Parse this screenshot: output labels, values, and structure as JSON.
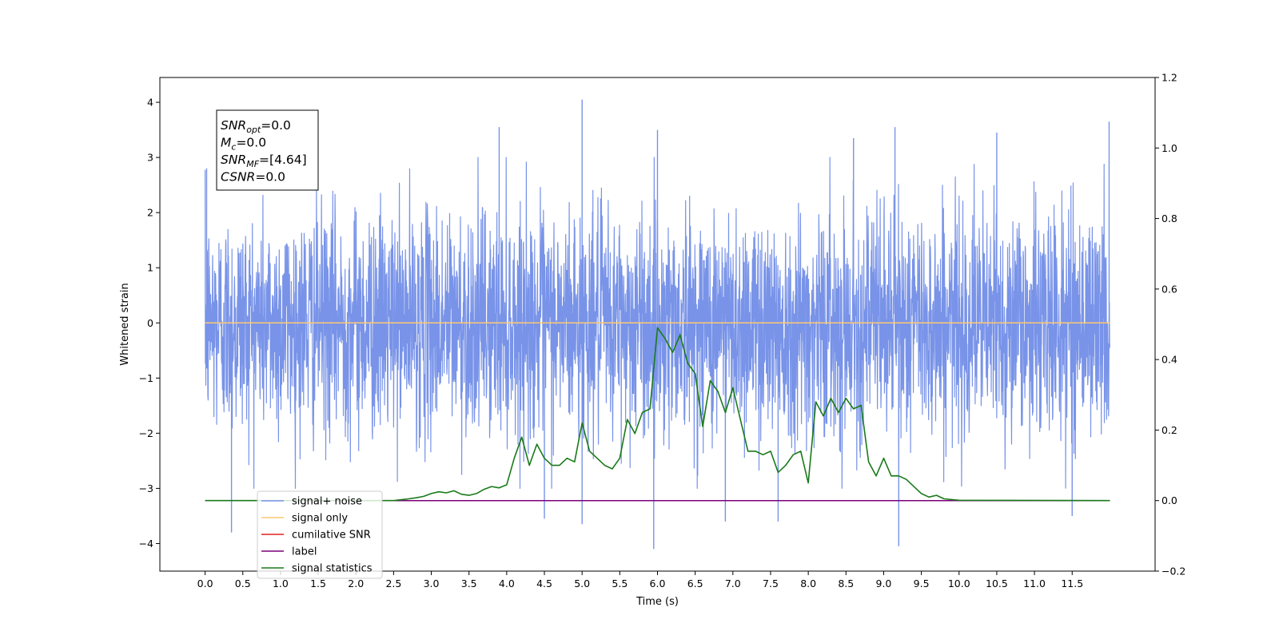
{
  "chart_data": {
    "type": "line",
    "xlabel": "Time (s)",
    "ylabel_left": "Whitened strain",
    "ylabel_right": "",
    "xlim": [
      -0.6,
      12.6
    ],
    "ylim_left": [
      -4.5,
      4.45
    ],
    "ylim_right": [
      -0.2,
      1.2
    ],
    "x_ticks": [
      0.0,
      0.5,
      1.0,
      1.5,
      2.0,
      2.5,
      3.0,
      3.5,
      4.0,
      4.5,
      5.0,
      5.5,
      6.0,
      6.5,
      7.0,
      7.5,
      8.0,
      8.5,
      9.0,
      9.5,
      10.0,
      10.5,
      11.0,
      11.5
    ],
    "x_tick_labels": [
      "0.0",
      "0.5",
      "1.0",
      "1.5",
      "2.0",
      "2.5",
      "3.0",
      "3.5",
      "4.0",
      "4.5",
      "5.0",
      "5.5",
      "6.0",
      "6.5",
      "7.0",
      "7.5",
      "8.0",
      "8.5",
      "9.0",
      "9.5",
      "10.0",
      "10.5",
      "11.0",
      "11.5"
    ],
    "y_left_ticks": [
      4,
      3,
      2,
      1,
      0,
      -1,
      -2,
      -3,
      -4
    ],
    "y_left_tick_labels": [
      "4",
      "3",
      "2",
      "1",
      "0",
      "−1",
      "−2",
      "−3",
      "−4"
    ],
    "y_right_ticks": [
      1.2,
      1.0,
      0.8,
      0.6,
      0.4,
      0.2,
      0.0,
      -0.2
    ],
    "y_right_tick_labels": [
      "1.2",
      "1.0",
      "0.8",
      "0.6",
      "0.4",
      "0.2",
      "0.0",
      "−0.2"
    ],
    "legend_placement": "lower-left",
    "legend": [
      {
        "label": "signal+ noise",
        "color": "#7893e8"
      },
      {
        "label": "signal only",
        "color": "#ffc870"
      },
      {
        "label": "cumilative SNR",
        "color": "#e02020"
      },
      {
        "label": "label",
        "color": "#7a007a"
      },
      {
        "label": "signal statistics",
        "color": "#1a7a1a"
      }
    ],
    "annotation": {
      "lines": [
        {
          "base": "SNR",
          "sub": "opt",
          "value": "=0.0"
        },
        {
          "base": "M",
          "sub": "c",
          "value": "=0.0"
        },
        {
          "base": "SNR",
          "sub": "MF",
          "value": "=[4.64]"
        },
        {
          "base": "CSNR",
          "sub": "",
          "value": "=0.0"
        }
      ]
    },
    "series": [
      {
        "name": "signal+ noise",
        "axis": "left",
        "color": "#7893e8",
        "x_range": [
          0.0,
          12.0
        ],
        "value_range": [
          -4.1,
          4.05
        ],
        "peaks": [
          {
            "x": 0.02,
            "y": 2.8
          },
          {
            "x": 0.35,
            "y": -3.8
          },
          {
            "x": 3.9,
            "y": 3.55
          },
          {
            "x": 4.5,
            "y": -3.55
          },
          {
            "x": 5.0,
            "y": 4.05
          },
          {
            "x": 5.0,
            "y": -3.65
          },
          {
            "x": 5.95,
            "y": -4.1
          },
          {
            "x": 6.0,
            "y": 3.5
          },
          {
            "x": 6.9,
            "y": -3.6
          },
          {
            "x": 7.6,
            "y": -3.6
          },
          {
            "x": 8.6,
            "y": 3.35
          },
          {
            "x": 9.15,
            "y": 3.55
          },
          {
            "x": 9.2,
            "y": -4.05
          },
          {
            "x": 10.5,
            "y": 3.45
          },
          {
            "x": 11.5,
            "y": -3.5
          },
          {
            "x": 11.99,
            "y": 3.65
          }
        ]
      },
      {
        "name": "signal only",
        "axis": "left",
        "color": "#ffc870",
        "x": [
          0.0,
          12.0
        ],
        "y": [
          0.0,
          0.0
        ]
      },
      {
        "name": "label",
        "axis": "right",
        "color": "#7a007a",
        "x": [
          0.0,
          12.0
        ],
        "y": [
          0.0,
          0.0
        ]
      },
      {
        "name": "signal statistics",
        "axis": "right",
        "color": "#1a7a1a",
        "x": [
          0.0,
          2.0,
          2.5,
          2.7,
          2.8,
          2.9,
          3.0,
          3.1,
          3.2,
          3.3,
          3.4,
          3.5,
          3.6,
          3.7,
          3.8,
          3.9,
          4.0,
          4.1,
          4.2,
          4.3,
          4.4,
          4.5,
          4.6,
          4.7,
          4.8,
          4.9,
          5.0,
          5.1,
          5.2,
          5.3,
          5.4,
          5.5,
          5.6,
          5.7,
          5.8,
          5.9,
          6.0,
          6.1,
          6.2,
          6.3,
          6.4,
          6.5,
          6.6,
          6.7,
          6.8,
          6.9,
          7.0,
          7.1,
          7.2,
          7.3,
          7.4,
          7.5,
          7.6,
          7.7,
          7.8,
          7.9,
          8.0,
          8.1,
          8.2,
          8.3,
          8.4,
          8.5,
          8.6,
          8.7,
          8.8,
          8.9,
          9.0,
          9.1,
          9.2,
          9.3,
          9.4,
          9.5,
          9.6,
          9.7,
          9.8,
          10.0,
          12.0
        ],
        "y": [
          0.0,
          0.0,
          0.0,
          0.005,
          0.008,
          0.012,
          0.02,
          0.025,
          0.022,
          0.028,
          0.018,
          0.015,
          0.02,
          0.032,
          0.04,
          0.036,
          0.045,
          0.12,
          0.18,
          0.1,
          0.16,
          0.12,
          0.1,
          0.1,
          0.12,
          0.11,
          0.22,
          0.14,
          0.12,
          0.1,
          0.09,
          0.12,
          0.23,
          0.19,
          0.25,
          0.26,
          0.49,
          0.46,
          0.42,
          0.47,
          0.39,
          0.36,
          0.21,
          0.34,
          0.31,
          0.25,
          0.32,
          0.23,
          0.14,
          0.14,
          0.13,
          0.14,
          0.08,
          0.1,
          0.13,
          0.14,
          0.05,
          0.28,
          0.24,
          0.29,
          0.25,
          0.29,
          0.26,
          0.27,
          0.11,
          0.07,
          0.12,
          0.07,
          0.07,
          0.06,
          0.04,
          0.02,
          0.01,
          0.015,
          0.005,
          0.001,
          0.0
        ]
      }
    ]
  }
}
